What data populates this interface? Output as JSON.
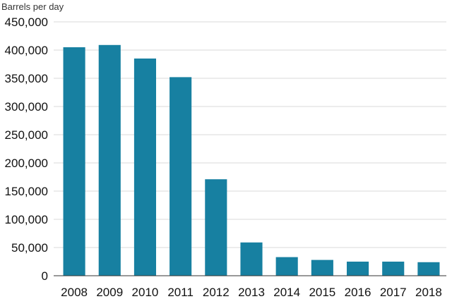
{
  "chart_data": {
    "type": "bar",
    "title": "",
    "xlabel": "",
    "ylabel": "Barrels per day",
    "categories": [
      "2008",
      "2009",
      "2010",
      "2011",
      "2012",
      "2013",
      "2014",
      "2015",
      "2016",
      "2017",
      "2018"
    ],
    "values": [
      405000,
      409000,
      385000,
      352000,
      171000,
      59000,
      33000,
      28000,
      25000,
      25000,
      24000
    ],
    "ylim": [
      0,
      450000
    ],
    "yticks": [
      0,
      50000,
      100000,
      150000,
      200000,
      250000,
      300000,
      350000,
      400000,
      450000
    ],
    "ytick_labels": [
      "0",
      "50,000",
      "100,000",
      "150,000",
      "200,000",
      "250,000",
      "300,000",
      "350,000",
      "400,000",
      "450,000"
    ],
    "grid": true,
    "legend": "none",
    "colors": {
      "bar": "#1780a1",
      "grid": "#d9d9d9",
      "axis": "#333333"
    }
  }
}
